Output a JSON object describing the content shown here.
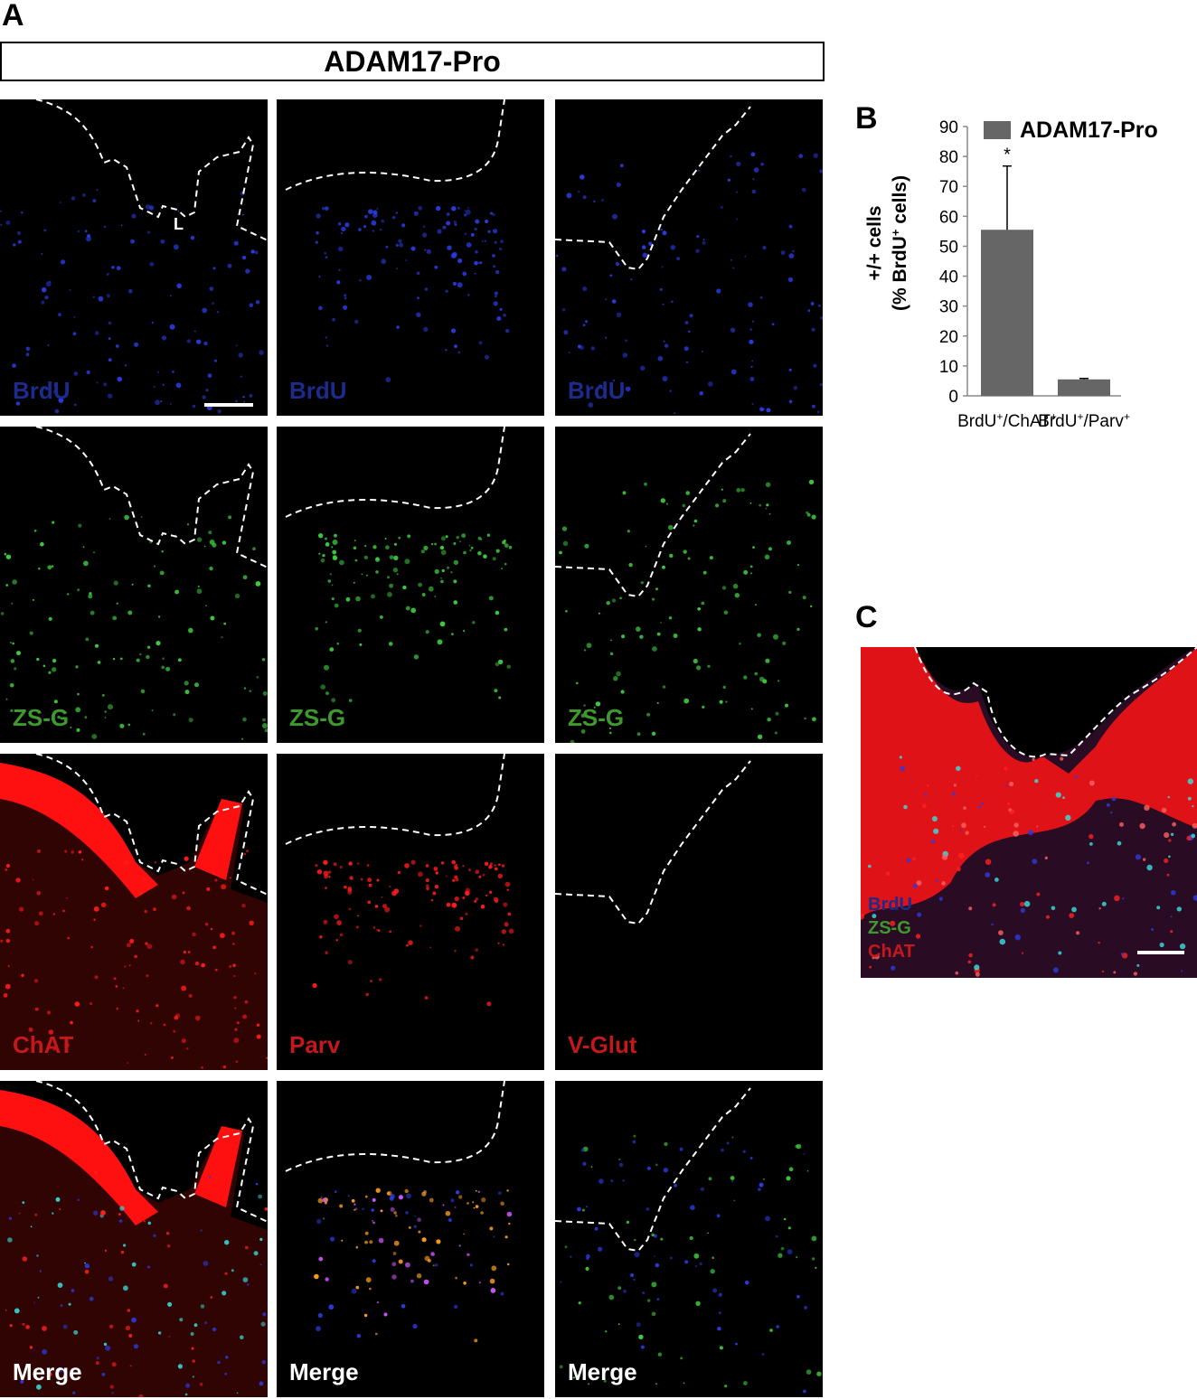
{
  "panels": {
    "a": "A",
    "b": "B",
    "c": "C"
  },
  "title": "ADAM17-Pro",
  "lumen_label": "L",
  "rows": [
    {
      "labels": [
        "BrdU",
        "BrdU",
        "BrdU"
      ],
      "color": "#1c2b8c"
    },
    {
      "labels": [
        "ZS-G",
        "ZS-G",
        "ZS-G"
      ],
      "color": "#3f9a2e"
    },
    {
      "labels": [
        "ChAT",
        "Parv",
        "V-Glut"
      ],
      "color": "#c4181c"
    },
    {
      "labels": [
        "Merge",
        "Merge",
        "Merge"
      ],
      "color": "#ffffff"
    }
  ],
  "panel_c_labels": [
    {
      "text": "BrdU",
      "color": "#1c2b8c"
    },
    {
      "text": "ZS-G",
      "color": "#3f9a2e"
    },
    {
      "text": "ChAT",
      "color": "#c4181c"
    }
  ],
  "chart_data": {
    "type": "bar",
    "categories": [
      "BrdU+/ChAT+",
      "BrdU+/Parv+"
    ],
    "series": [
      {
        "name": "ADAM17-Pro",
        "values": [
          55.5,
          5.5
        ],
        "errors": [
          21.3,
          0.3
        ],
        "color": "#666666"
      }
    ],
    "ylabel": "+/+ cells (% BrdU+ cells)",
    "ylim": [
      0,
      90
    ],
    "yticks": [
      0,
      10,
      20,
      30,
      40,
      50,
      60,
      70,
      80,
      90
    ],
    "annotations": [
      "*"
    ],
    "legend": "top-right"
  }
}
